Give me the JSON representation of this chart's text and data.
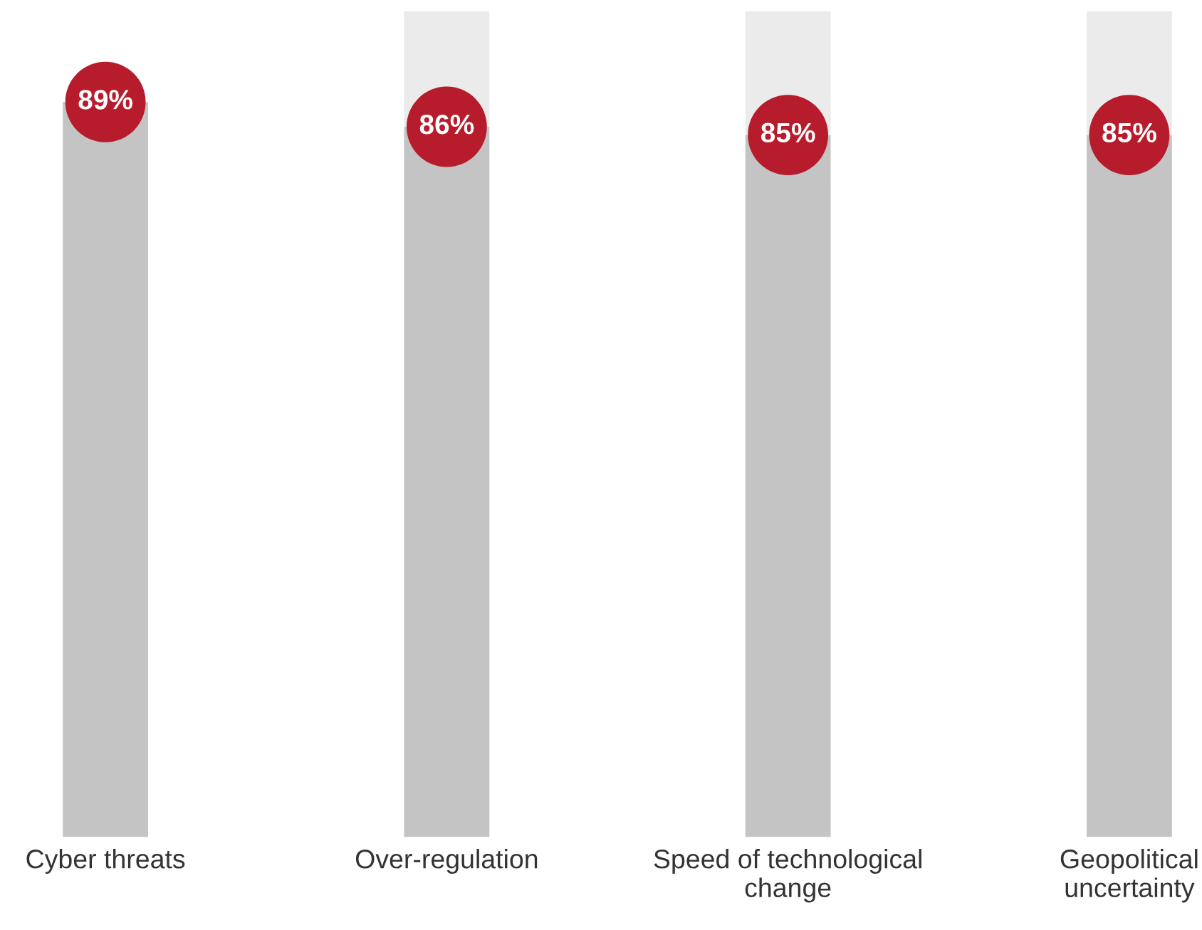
{
  "chart_data": {
    "type": "bar",
    "stacked": true,
    "categories": [
      "Cyber threats",
      "Over-regulation",
      "Speed of technological change",
      "Geopolitical uncertainty"
    ],
    "series": [
      {
        "color": "#c4c4c4",
        "values": [
          89,
          86,
          85,
          85
        ],
        "value_labels": [
          "89%",
          "86%",
          "85%",
          "85%"
        ]
      },
      {
        "color": "#ebebeb",
        "values": [
          null,
          14,
          15,
          15
        ]
      }
    ],
    "tick_labels": "x"
  }
}
